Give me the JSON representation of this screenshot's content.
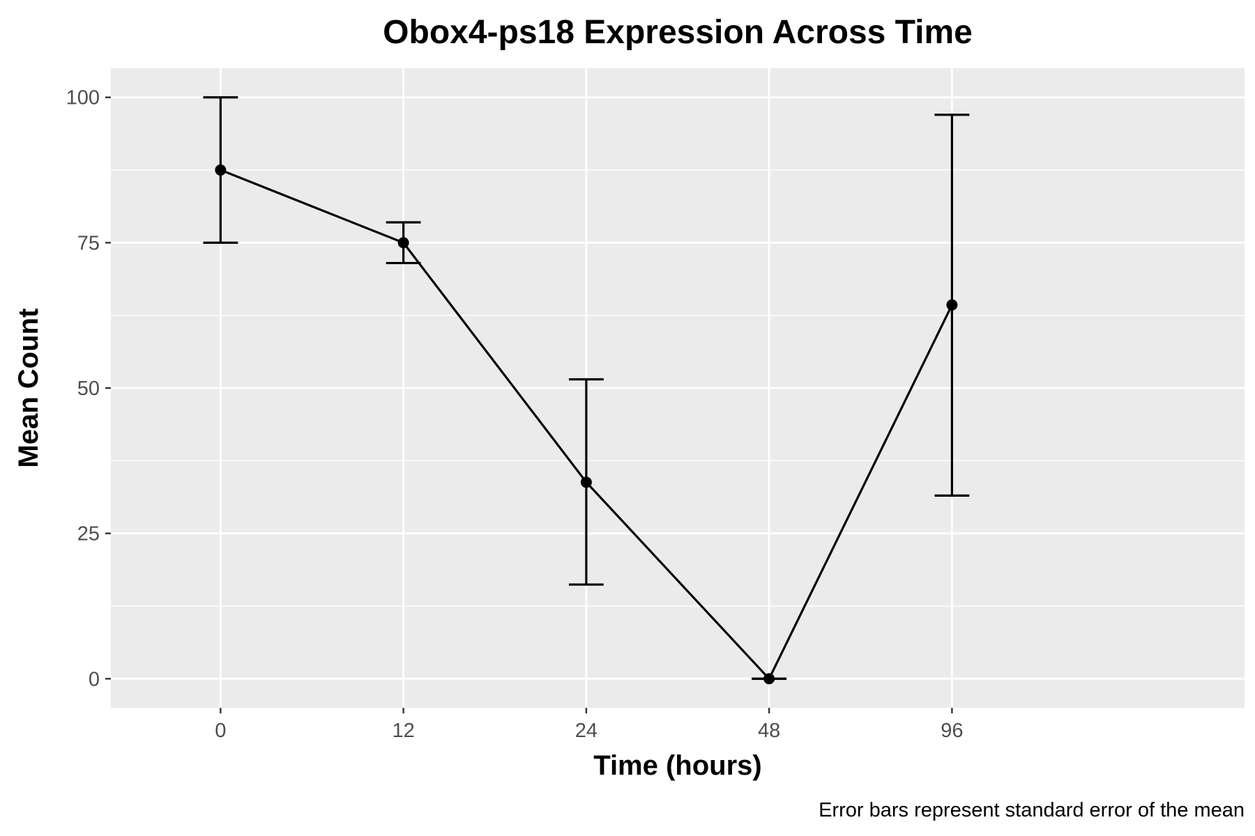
{
  "chart_data": {
    "type": "line",
    "title": "Obox4-ps18 Expression Across Time",
    "xlabel": "Time (hours)",
    "ylabel": "Mean Count",
    "caption": "Error bars represent standard error of the mean",
    "categories": [
      "0",
      "12",
      "24",
      "48",
      "96"
    ],
    "x_scale": "categorical",
    "ylim": [
      -5,
      105
    ],
    "y_ticks": [
      0,
      25,
      50,
      75,
      100
    ],
    "grid": true,
    "legend": "none",
    "series": [
      {
        "values": [
          87.5,
          75.0,
          33.8,
          0.0,
          64.3
        ],
        "error_lower": [
          75.0,
          71.5,
          16.2,
          0.0,
          31.5
        ],
        "error_upper": [
          100.0,
          78.5,
          51.5,
          0.0,
          97.0
        ],
        "error_type": "standard error of the mean"
      }
    ],
    "colors": {
      "panel_background": "#ebebeb",
      "grid_line": "#ffffff",
      "line": "#000000",
      "tick_text": "#4d4d4d"
    }
  }
}
